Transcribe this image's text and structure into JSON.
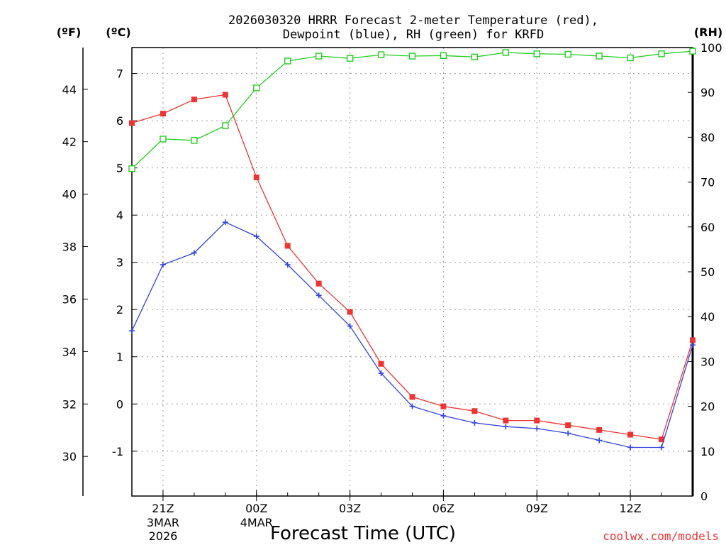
{
  "chart_data": {
    "type": "line",
    "title": "2026030320 HRRR Forecast 2-meter Temperature (red),",
    "title_line2": "Dewpoint (blue), RH (green) for KRFD",
    "xlabel": "Forecast Time (UTC)",
    "credit": "coolwx.com/models",
    "units": {
      "fahrenheit": "(ºF)",
      "celsius": "(ºC)",
      "rh": "(RH)"
    },
    "hours": [
      20,
      21,
      22,
      23,
      24,
      25,
      26,
      27,
      28,
      29,
      30,
      31,
      32,
      33,
      34,
      35,
      36,
      37,
      38
    ],
    "x_ticks": [
      {
        "hour": 21,
        "label": "21Z",
        "sub1": "3MAR",
        "sub2": "2026"
      },
      {
        "hour": 24,
        "label": "00Z",
        "sub1": "4MAR",
        "sub2": ""
      },
      {
        "hour": 27,
        "label": "03Z",
        "sub1": "",
        "sub2": ""
      },
      {
        "hour": 30,
        "label": "06Z",
        "sub1": "",
        "sub2": ""
      },
      {
        "hour": 33,
        "label": "09Z",
        "sub1": "",
        "sub2": ""
      },
      {
        "hour": 36,
        "label": "12Z",
        "sub1": "",
        "sub2": ""
      }
    ],
    "celsius_range": [
      -1.95,
      7.55
    ],
    "rh_range": [
      0,
      100
    ],
    "celsius_ticks": [
      "-1",
      "0",
      "1",
      "2",
      "3",
      "4",
      "5",
      "6",
      "7"
    ],
    "fahrenheit_ticks": [
      "30",
      "32",
      "34",
      "36",
      "38",
      "40",
      "42",
      "44"
    ],
    "rh_ticks": [
      "0",
      "10",
      "20",
      "30",
      "40",
      "50",
      "60",
      "70",
      "80",
      "90",
      "100"
    ],
    "series": [
      {
        "name": "Temperature",
        "color": "#ee3333",
        "marker": "filled-square",
        "values": [
          5.95,
          6.15,
          6.45,
          6.55,
          4.8,
          3.35,
          2.55,
          1.95,
          0.85,
          0.15,
          -0.05,
          -0.15,
          -0.35,
          -0.35,
          -0.45,
          -0.55,
          -0.65,
          -0.75,
          1.35
        ]
      },
      {
        "name": "Dewpoint",
        "color": "#3344dd",
        "marker": "plus",
        "values": [
          1.55,
          2.95,
          3.2,
          3.85,
          3.55,
          2.95,
          2.3,
          1.65,
          0.65,
          -0.05,
          -0.25,
          -0.4,
          -0.48,
          -0.52,
          -0.62,
          -0.77,
          -0.92,
          -0.92,
          1.25
        ]
      },
      {
        "name": "RH",
        "color": "#22cc22",
        "marker": "open-square",
        "axis": "rh",
        "values": [
          73,
          79.6,
          79.3,
          82.6,
          91,
          97,
          98.1,
          97.6,
          98.4,
          98.1,
          98.2,
          97.9,
          98.9,
          98.6,
          98.5,
          98.1,
          97.7,
          98.6,
          99.2
        ]
      }
    ]
  }
}
